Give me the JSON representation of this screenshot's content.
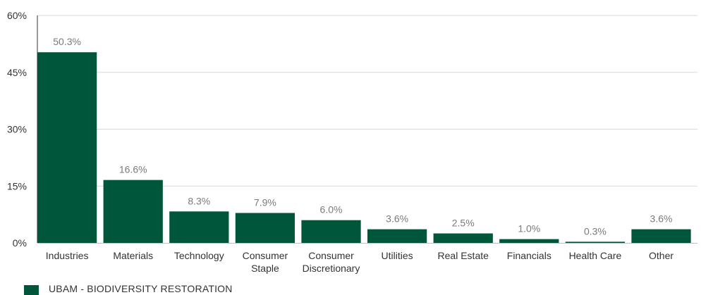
{
  "chart_data": {
    "type": "bar",
    "categories": [
      "Industries",
      "Materials",
      "Technology",
      [
        "Consumer",
        "Staple"
      ],
      [
        "Consumer",
        "Discretionary"
      ],
      "Utilities",
      "Real Estate",
      "Financials",
      "Health Care",
      "Other"
    ],
    "series": [
      {
        "name": "UBAM - BIODIVERSITY RESTORATION",
        "values": [
          50.3,
          16.6,
          8.3,
          7.9,
          6.0,
          3.6,
          2.5,
          1.0,
          0.3,
          3.6
        ],
        "labels": [
          "50.3%",
          "16.6%",
          "8.3%",
          "7.9%",
          "6.0%",
          "3.6%",
          "2.5%",
          "1.0%",
          "0.3%",
          "3.6%"
        ]
      }
    ],
    "y_ticks": [
      "0%",
      "15%",
      "30%",
      "45%",
      "60%"
    ],
    "y_tick_values": [
      0,
      15,
      30,
      45,
      60
    ],
    "ylim": [
      0,
      60
    ],
    "grid": true,
    "legend_position": "bottom-left",
    "colors": {
      "bar": "#00563a",
      "grid": "#d9d9d9",
      "axis": "#333333",
      "value_label": "#7a7a7a"
    }
  }
}
